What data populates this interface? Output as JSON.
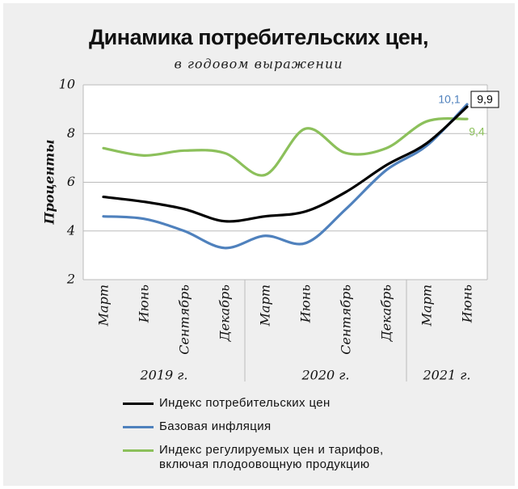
{
  "chart_data": {
    "type": "line",
    "title": "Динамика потребительских цен,",
    "subtitle": "в годовом выражении",
    "y_label": "Проценты",
    "categories": [
      "Март",
      "Июнь",
      "Сентябрь",
      "Декабрь",
      "Март",
      "Июнь",
      "Сентябрь",
      "Декабрь",
      "Март",
      "Июнь"
    ],
    "groups": [
      {
        "label": "2019 г.",
        "count": 4
      },
      {
        "label": "2020 г.",
        "count": 4
      },
      {
        "label": "2021 г.",
        "count": 2
      }
    ],
    "series": [
      {
        "name": "Индекс потребительских цен",
        "color": "#000000",
        "values": [
          5.4,
          5.2,
          4.9,
          4.4,
          4.6,
          4.8,
          5.6,
          6.7,
          7.6,
          9.1
        ]
      },
      {
        "name": "Базовая инфляция",
        "color": "#4f81bd",
        "values": [
          4.6,
          4.5,
          4.0,
          3.3,
          3.8,
          3.5,
          4.9,
          6.5,
          7.5,
          9.2
        ]
      },
      {
        "name": "Индекс регулируемых цен и тарифов, включая плодоовощную продукцию",
        "color": "#8cc05b",
        "values": [
          7.4,
          7.1,
          7.3,
          7.2,
          6.3,
          8.2,
          7.2,
          7.4,
          8.5,
          8.6
        ]
      }
    ],
    "annotations": [
      {
        "text": "10,1",
        "color": "#4f81bd"
      },
      {
        "text": "9,9",
        "color": "#000000",
        "boxed": true
      },
      {
        "text": "9,4",
        "color": "#8cc05b"
      }
    ],
    "ylim": [
      2,
      10
    ],
    "yticks": [
      2,
      4,
      6,
      8,
      10
    ],
    "grid": true
  }
}
